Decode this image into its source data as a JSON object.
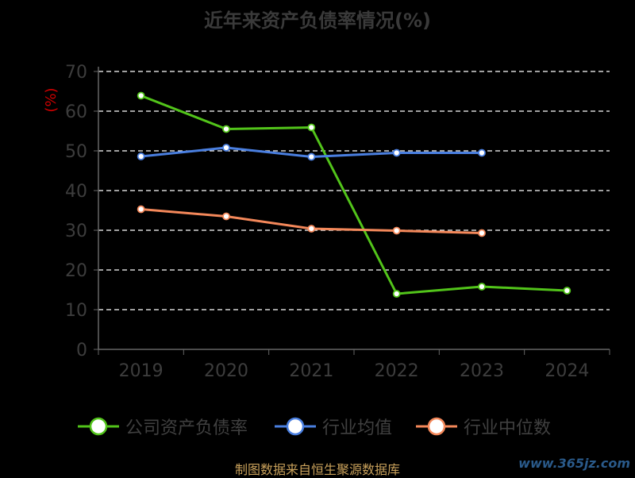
{
  "title": "近年来资产负债率情况(%)",
  "source_text": "制图数据来自恒生聚源数据库",
  "watermark": "www.365jz.com",
  "chart_data": {
    "type": "line",
    "title": "近年来资产负债率情况(%)",
    "ylabel": "(%)",
    "xlabel": "",
    "categories": [
      "2019",
      "2020",
      "2021",
      "2022",
      "2023",
      "2024"
    ],
    "ylim": [
      0,
      70
    ],
    "yticks": [
      0,
      10,
      20,
      30,
      40,
      50,
      60,
      70
    ],
    "grid": true,
    "legend_position": "bottom",
    "series": [
      {
        "name": "公司资产负债率",
        "color": "#52c41a",
        "values": [
          63.9,
          55.5,
          55.9,
          14.0,
          15.8,
          14.8
        ]
      },
      {
        "name": "行业均值",
        "color": "#4a7fe0",
        "values": [
          48.6,
          50.8,
          48.5,
          49.5,
          49.5,
          null
        ]
      },
      {
        "name": "行业中位数",
        "color": "#f4885a",
        "values": [
          35.3,
          33.5,
          30.4,
          29.9,
          29.3,
          null
        ]
      }
    ]
  },
  "colors": {
    "background": "#000000",
    "grid": "#ffffff",
    "axis": "#666666",
    "ylabel": "#cc0000"
  }
}
